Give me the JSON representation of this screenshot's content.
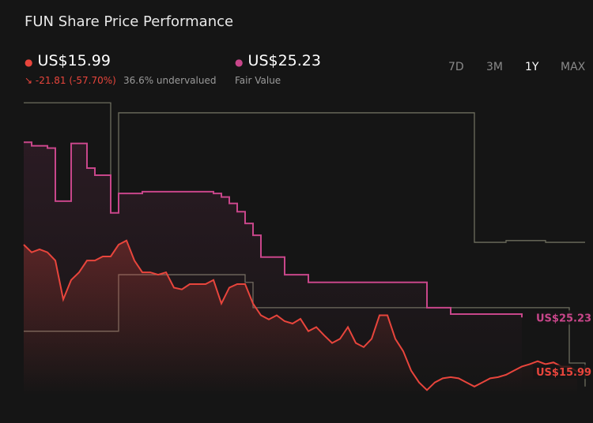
{
  "header": {
    "title": "FUN Share Price Performance",
    "price": "US$15.99",
    "change": "-21.81 (-57.70%)",
    "valuation": "36.6% undervalued",
    "fair_value": "US$25.23",
    "fair_value_label": "Fair Value",
    "ranges": [
      "7D",
      "3M",
      "1Y",
      "MAX"
    ],
    "active_range": "1Y"
  },
  "chart_data": {
    "type": "line",
    "ylim": [
      12,
      62
    ],
    "series": [
      {
        "color": "#6e6e5e",
        "step": true,
        "values": [
          61.7,
          61.7,
          61.7,
          61.7,
          61.7,
          61.7,
          61.7,
          61.7,
          61.7,
          61.7,
          61.7,
          43.0,
          60.0,
          60.0,
          60.0,
          60.0,
          60.0,
          60.0,
          60.0,
          60.0,
          60.0,
          60.0,
          60.0,
          60.0,
          60.0,
          60.0,
          60.0,
          60.0,
          60.0,
          60.0,
          60.0,
          60.0,
          60.0,
          60.0,
          60.0,
          60.0,
          60.0,
          60.0,
          60.0,
          60.0,
          60.0,
          60.0,
          60.0,
          60.0,
          60.0,
          60.0,
          60.0,
          60.0,
          60.0,
          60.0,
          60.0,
          60.0,
          60.0,
          60.0,
          60.0,
          60.0,
          60.0,
          38.0,
          38.0,
          38.0,
          38.0,
          38.3,
          38.3,
          38.3,
          38.3,
          38.3,
          38.0,
          38.0,
          38.0,
          38.0,
          38.0,
          38.0
        ]
      },
      {
        "color": "#6e6e5e",
        "step": true,
        "values": [
          22.9,
          22.9,
          22.9,
          22.9,
          22.9,
          22.9,
          22.9,
          22.9,
          22.9,
          22.9,
          22.9,
          22.9,
          32.5,
          32.5,
          32.5,
          32.5,
          32.5,
          32.5,
          32.5,
          32.5,
          32.5,
          32.5,
          32.5,
          32.5,
          32.5,
          32.5,
          32.5,
          32.5,
          31.2,
          26.9,
          26.9,
          26.9,
          26.9,
          26.9,
          26.9,
          26.9,
          26.9,
          26.9,
          26.9,
          26.9,
          26.9,
          26.9,
          26.9,
          26.9,
          26.9,
          26.9,
          26.9,
          26.9,
          26.9,
          26.9,
          26.9,
          26.9,
          26.9,
          26.9,
          26.9,
          26.9,
          26.9,
          26.9,
          26.9,
          26.9,
          26.9,
          26.9,
          26.9,
          26.9,
          26.9,
          26.9,
          26.9,
          26.9,
          26.9,
          17.5,
          17.5,
          13.5
        ]
      },
      {
        "color": "#c8468a",
        "step": true,
        "end_label": "US$25.23",
        "values": [
          55.0,
          54.4,
          54.4,
          54.0,
          45.0,
          45.0,
          54.8,
          54.8,
          50.6,
          49.4,
          49.4,
          43.0,
          46.3,
          46.3,
          46.3,
          46.6,
          46.6,
          46.6,
          46.6,
          46.6,
          46.6,
          46.6,
          46.6,
          46.6,
          46.3,
          45.7,
          44.6,
          43.2,
          41.2,
          39.2,
          35.5,
          35.5,
          35.5,
          32.5,
          32.5,
          32.5,
          31.2,
          31.2,
          31.2,
          31.2,
          31.2,
          31.2,
          31.2,
          31.2,
          31.2,
          31.2,
          31.2,
          31.2,
          31.2,
          31.2,
          31.2,
          26.9,
          26.9,
          26.9,
          25.8,
          25.8,
          25.8,
          25.8,
          25.8,
          25.8,
          25.8,
          25.8,
          25.8,
          25.23,
          null,
          null,
          null,
          null,
          null,
          null,
          null,
          null
        ]
      },
      {
        "color": "#e8453c",
        "step": false,
        "end_label": "US$15.99",
        "values": [
          37.6,
          36.3,
          36.8,
          36.3,
          34.9,
          28.3,
          31.6,
          32.9,
          34.9,
          34.9,
          35.6,
          35.6,
          37.6,
          38.3,
          34.9,
          32.9,
          32.9,
          32.5,
          32.9,
          30.3,
          30.0,
          30.9,
          30.9,
          30.9,
          31.6,
          27.6,
          30.3,
          30.9,
          30.9,
          27.6,
          25.6,
          24.9,
          25.6,
          24.6,
          24.2,
          25.0,
          22.9,
          23.6,
          22.2,
          20.9,
          21.6,
          23.6,
          20.9,
          20.2,
          21.6,
          25.6,
          25.6,
          21.6,
          19.5,
          16.2,
          14.2,
          12.9,
          14.2,
          14.9,
          15.1,
          14.9,
          14.2,
          13.5,
          14.2,
          14.9,
          15.1,
          15.5,
          16.2,
          16.9,
          17.3,
          17.8,
          17.3,
          17.6,
          16.9,
          16.9,
          15.99,
          null
        ]
      }
    ]
  }
}
